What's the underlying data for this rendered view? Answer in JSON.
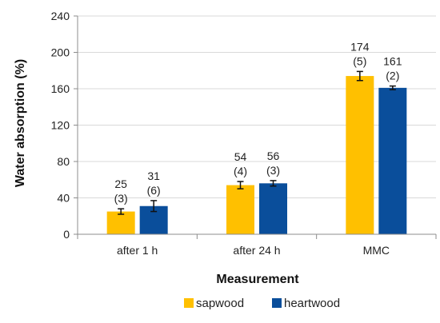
{
  "chart_data": {
    "type": "bar",
    "title": "",
    "xlabel": "Measurement",
    "ylabel": "Water absorption (%)",
    "ylim": [
      0,
      240
    ],
    "yticks": [
      0,
      40,
      80,
      120,
      160,
      200,
      240
    ],
    "categories": [
      "after 1 h",
      "after 24 h",
      "MMC"
    ],
    "grid": "horizontal",
    "legend_position": "bottom",
    "series": [
      {
        "name": "sapwood",
        "color": "#FFC000",
        "values": [
          25,
          54,
          174
        ],
        "errors": [
          3,
          4,
          5
        ],
        "labels": [
          "25",
          "54",
          "174"
        ],
        "error_labels": [
          "(3)",
          "(4)",
          "(5)"
        ]
      },
      {
        "name": "heartwood",
        "color": "#0A4E9B",
        "values": [
          31,
          56,
          161
        ],
        "errors": [
          6,
          3,
          2
        ],
        "labels": [
          "31",
          "56",
          "161"
        ],
        "error_labels": [
          "(6)",
          "(3)",
          "(2)"
        ]
      }
    ]
  }
}
